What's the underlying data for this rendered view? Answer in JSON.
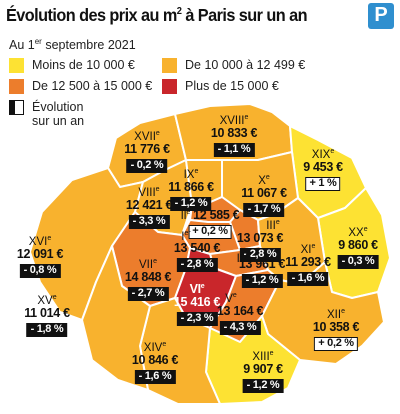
{
  "title": {
    "text": "Évolution des prix au m",
    "sup": "2",
    "tail": " à Paris sur un an"
  },
  "logo": {
    "letter": "P",
    "color": "#2f8fcf"
  },
  "subtitle": {
    "pre": "Au 1",
    "sup": "er",
    "post": " septembre 2021"
  },
  "legend": [
    {
      "label": "Moins de 10 000 €",
      "color": "#fde233"
    },
    {
      "label": "De 10 000 à 12 499 €",
      "color": "#f8b22e"
    },
    {
      "label": "De 12 500 à 15 000 €",
      "color": "#ec7d2c"
    },
    {
      "label": "Plus de 15 000 €",
      "color": "#c9262b"
    }
  ],
  "legend_evolution": "Évolution sur un an",
  "colors": {
    "lt10k": "#fde233",
    "10to12k": "#f8b22e",
    "12to15k": "#ec7d2c",
    "gt15k": "#c9262b",
    "border": "#ffffff",
    "background": "#ffffff"
  },
  "arrondissements": [
    {
      "num": "I",
      "price": "",
      "price_value": 12585,
      "evolution": "",
      "tier": "12to15k"
    },
    {
      "num": "II",
      "price": "12 585 €",
      "price_value": 12585,
      "evolution": "+ 0,2 %",
      "tier": "12to15k"
    },
    {
      "num": "III",
      "price": "13 073 €",
      "price_value": 13073,
      "evolution": "- 2,8 %",
      "tier": "12to15k"
    },
    {
      "num": "IV",
      "price": "13 540 €",
      "price_value": 13540,
      "evolution": "- 2,8 %",
      "tier": "12to15k"
    },
    {
      "num": "V",
      "price": "13 164 €",
      "price_value": 13164,
      "evolution": "- 4,3 %",
      "tier": "12to15k"
    },
    {
      "num": "VI",
      "price": "15 416 €",
      "price_value": 15416,
      "evolution": "- 2,3 %",
      "tier": "gt15k"
    },
    {
      "num": "VII",
      "price": "14 848 €",
      "price_value": 14848,
      "evolution": "- 2,7 %",
      "tier": "12to15k"
    },
    {
      "num": "VIII",
      "price": "12 421 €",
      "price_value": 12421,
      "evolution": "- 3,3 %",
      "tier": "10to12k"
    },
    {
      "num": "IX",
      "price": "11 866 €",
      "price_value": 11866,
      "evolution": "- 1,2 %",
      "tier": "10to12k"
    },
    {
      "num": "X",
      "price": "11 067 €",
      "price_value": 11067,
      "evolution": "- 1,7 %",
      "tier": "10to12k"
    },
    {
      "num": "XI",
      "price": "11 293 €",
      "price_value": 11293,
      "evolution": "- 1,6 %",
      "tier": "10to12k"
    },
    {
      "num": "XII",
      "price": "10 358 €",
      "price_value": 10358,
      "evolution": "+ 0,2 %",
      "tier": "10to12k"
    },
    {
      "num": "XIII",
      "price": "9 907 €",
      "price_value": 9907,
      "evolution": "- 1,2 %",
      "tier": "lt10k"
    },
    {
      "num": "XIV",
      "price": "10 846 €",
      "price_value": 10846,
      "evolution": "- 1,6 %",
      "tier": "10to12k"
    },
    {
      "num": "XV",
      "price": "11 014 €",
      "price_value": 11014,
      "evolution": "- 1,8 %",
      "tier": "10to12k"
    },
    {
      "num": "XVI",
      "price": "12 091 €",
      "price_value": 12091,
      "evolution": "- 0,8 %",
      "tier": "10to12k"
    },
    {
      "num": "XVII",
      "price": "11 776 €",
      "price_value": 11776,
      "evolution": "- 0,2 %",
      "tier": "10to12k"
    },
    {
      "num": "XVIII",
      "price": "10 833 €",
      "price_value": 10833,
      "evolution": "- 1,1 %",
      "tier": "10to12k"
    },
    {
      "num": "XIX",
      "price": "9 453 €",
      "price_value": 9453,
      "evolution": "+ 1 %",
      "tier": "lt10k"
    },
    {
      "num": "XX",
      "price": "9 860 €",
      "price_value": 9860,
      "evolution": "- 0,3 %",
      "tier": "lt10k"
    }
  ]
}
